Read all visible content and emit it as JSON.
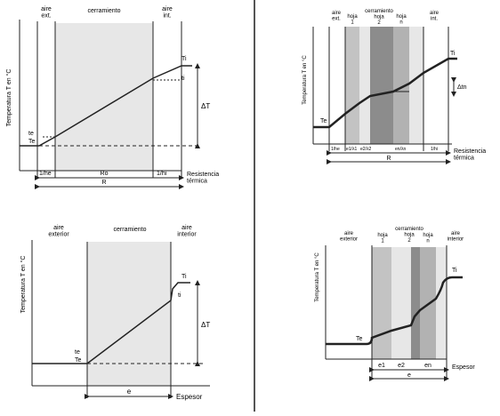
{
  "colors": {
    "background": "#ffffff",
    "separator": "#555555",
    "wall_light": "#e7e7e7",
    "layer_light": "#c3c3c3",
    "layer_mid": "#b2b2b2",
    "layer_dark": "#8c8c8c",
    "line": "#222222"
  },
  "panel_a": {
    "region_outside": "aire\next.",
    "region_wall": "cerramiento",
    "region_inside": "aire\nint.",
    "axis_label": "Temperatura T en °C",
    "ti_label": "Ti",
    "ti_label_small": "ti",
    "te_label": "te",
    "Te_label": "Te",
    "delta_T": "ΔT",
    "res_out": "1/he",
    "res_wall": "Ro",
    "res_in": "1/hi",
    "res_total": "R",
    "x_axis": "Resistencia\ntérmica"
  },
  "panel_b": {
    "region_outside": "aire\next.",
    "layer_1": "hoja\n1",
    "wall_group": "cerramiento\nhoja\n2",
    "layer_n": "hoja\nn",
    "region_inside": "aire\nint.",
    "axis_label": "Temperatura T en °C",
    "ti_label": "Ti",
    "te_label": "Te",
    "delta_tn": "Δtn",
    "res_ticks": [
      "1/he",
      "e1/λ1",
      "e2/λ2",
      "en/λn",
      "1/hi"
    ],
    "res_total": "R",
    "x_axis": "Resistencia\ntérmica"
  },
  "panel_c": {
    "region_outside": "aire\nexterior",
    "region_wall": "cerramiento",
    "region_inside": "aire\ninterior",
    "axis_label": "Temperatura T en °C",
    "ti_label": "Ti",
    "ti_label_small": "ti",
    "te_label": "te",
    "Te_label": "Te",
    "delta_T": "ΔT",
    "thickness": "e",
    "x_axis": "Espesor"
  },
  "panel_d": {
    "region_outside": "aire\nexterior",
    "layer_1": "hoja\n1",
    "wall_group": "cerramiento\nhoja\n2",
    "layer_n": "hoja\nn",
    "region_inside": "aire\ninterior",
    "axis_label": "Temperatura T en °C",
    "ti_label": "Ti",
    "te_label": "Te",
    "thickness_ticks": [
      "e1",
      "e2",
      "en"
    ],
    "thickness_total": "e",
    "x_axis": "Espesor"
  }
}
